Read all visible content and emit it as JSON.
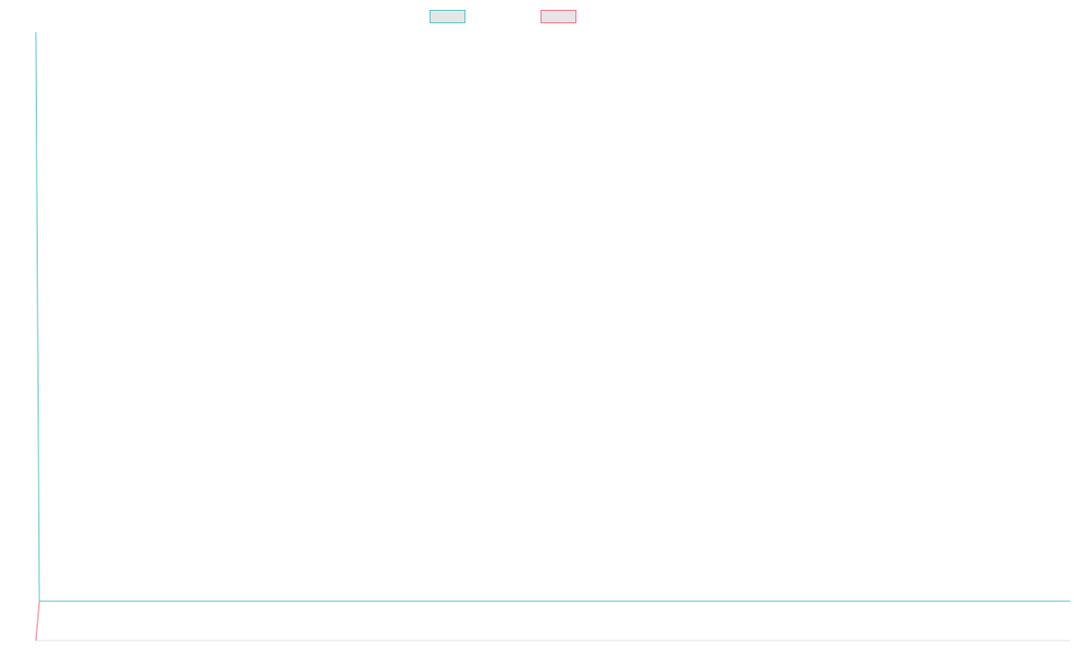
{
  "chart_data": {
    "type": "line",
    "title": "",
    "xlabel": "",
    "ylabel": "",
    "grid": false,
    "legend_position": "top-center",
    "series": [
      {
        "color": "#4bc0c0",
        "values": [
          100,
          0,
          0
        ]
      },
      {
        "color": "#ff6384",
        "values": [
          0,
          0
        ]
      }
    ],
    "colors": {
      "series_1": "#4bc0c0",
      "series_2": "#ff6384",
      "legend_fill": "#e6e6e6",
      "axis": "#e0e0e0"
    }
  }
}
